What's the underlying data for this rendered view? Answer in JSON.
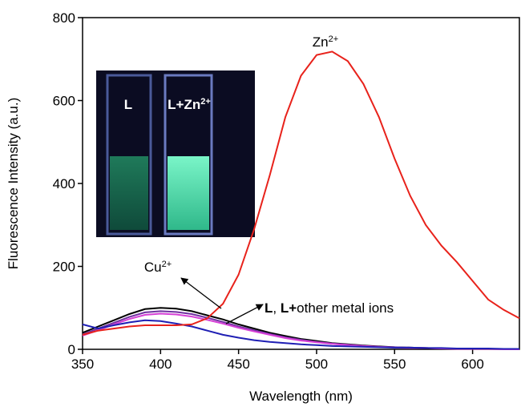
{
  "chart_data": {
    "type": "line",
    "x_label": "Wavelength (nm)",
    "y_label": "Fluorescence Intensity (a.u.)",
    "xlim": [
      350,
      630
    ],
    "xticks": [
      350,
      400,
      450,
      500,
      550,
      600
    ],
    "ylim": [
      0,
      800
    ],
    "yticks": [
      0,
      200,
      400,
      600,
      800
    ],
    "x": [
      350,
      360,
      370,
      380,
      390,
      400,
      410,
      420,
      430,
      440,
      450,
      460,
      470,
      480,
      490,
      500,
      510,
      520,
      530,
      540,
      550,
      560,
      570,
      580,
      590,
      600,
      610,
      620,
      630
    ],
    "series": [
      {
        "color": "#000000",
        "values": [
          40,
          55,
          70,
          85,
          97,
          100,
          98,
          92,
          82,
          72,
          60,
          50,
          40,
          32,
          25,
          20,
          15,
          12,
          9,
          7,
          5,
          4,
          3,
          2,
          2,
          1,
          1,
          1,
          0
        ]
      },
      {
        "color": "#7030a0",
        "values": [
          36,
          50,
          64,
          78,
          89,
          92,
          90,
          85,
          76,
          66,
          55,
          46,
          37,
          29,
          23,
          18,
          14,
          11,
          8,
          6,
          5,
          4,
          3,
          2,
          2,
          1,
          1,
          1,
          0
        ]
      },
      {
        "color": "#d63fd6",
        "values": [
          33,
          46,
          60,
          73,
          83,
          86,
          84,
          79,
          71,
          62,
          52,
          43,
          35,
          27,
          21,
          17,
          13,
          10,
          8,
          6,
          4,
          3,
          3,
          2,
          1,
          1,
          1,
          0,
          0
        ]
      },
      {
        "color": "#1f1fb4",
        "values": [
          60,
          50,
          58,
          65,
          70,
          68,
          62,
          55,
          45,
          35,
          28,
          22,
          18,
          15,
          12,
          10,
          8,
          7,
          6,
          5,
          4,
          4,
          3,
          3,
          2,
          2,
          2,
          1,
          1
        ]
      },
      {
        "color": "#e8221b",
        "values": [
          35,
          45,
          50,
          55,
          58,
          58,
          58,
          60,
          75,
          110,
          180,
          290,
          420,
          560,
          660,
          710,
          718,
          695,
          640,
          560,
          460,
          370,
          300,
          250,
          210,
          165,
          120,
          95,
          75
        ]
      }
    ],
    "annotations": [
      {
        "parts": [
          {
            "text": "Zn"
          },
          {
            "text": "2+",
            "sup": true
          }
        ]
      },
      {
        "parts": [
          {
            "text": "Cu"
          },
          {
            "text": "2+",
            "sup": true
          }
        ]
      },
      {
        "parts": [
          {
            "text": "L",
            "bold": true
          },
          {
            "text": ", "
          },
          {
            "text": "L",
            "bold": true
          },
          {
            "text": "+",
            "bold": true
          },
          {
            "text": "other metal ions"
          }
        ]
      }
    ],
    "inset_labels": [
      {
        "parts": [
          {
            "text": "L"
          }
        ]
      },
      {
        "parts": [
          {
            "text": "L+Zn"
          },
          {
            "text": "2+",
            "sup": true
          }
        ]
      }
    ]
  }
}
